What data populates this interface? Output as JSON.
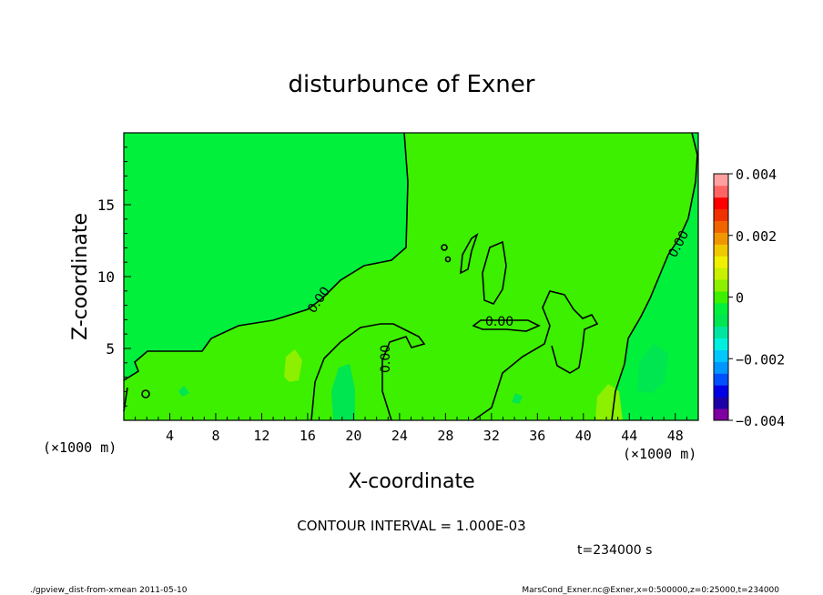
{
  "chart_data": {
    "type": "heatmap",
    "title": "disturbunce of Exner",
    "xlabel": "X-coordinate",
    "ylabel": "Z-coordinate",
    "x_unit_left": "(×1000 m)",
    "x_unit_right": "(×1000 m)",
    "xlim": [
      0,
      50
    ],
    "ylim": [
      0,
      20
    ],
    "x_ticks": [
      4,
      8,
      12,
      16,
      20,
      24,
      28,
      32,
      36,
      40,
      44,
      48
    ],
    "y_ticks": [
      5,
      10,
      15
    ],
    "colorbar": {
      "min": -0.004,
      "max": 0.004,
      "tick_values": [
        0.004,
        0.002,
        0,
        -0.002,
        -0.004
      ],
      "tick_labels": [
        "0.004",
        "0.002",
        "0",
        "−0.002",
        "−0.004"
      ],
      "colors": [
        "#7f00a0",
        "#1e00a8",
        "#0000e6",
        "#0050ff",
        "#0096ff",
        "#00c8ff",
        "#00f0e0",
        "#00e6a0",
        "#00e650",
        "#00f03c",
        "#3cf000",
        "#8cf000",
        "#c8f000",
        "#f0f000",
        "#f0c800",
        "#f09600",
        "#f06400",
        "#f03200",
        "#ff0000",
        "#ff6464",
        "#ffa0a0"
      ]
    },
    "field_level": 0.0,
    "contour_labels": [
      "0.00",
      "0.00",
      "0.00",
      "0.00"
    ],
    "contour_interval": "CONTOUR INTERVAL = 1.000E-03",
    "time_label": "t=234000 s"
  },
  "footer": {
    "left": "./gpview_dist-from-xmean  2011-05-10",
    "right": "MarsCond_Exner.nc@Exner,x=0:500000,z=0:25000,t=234000"
  }
}
